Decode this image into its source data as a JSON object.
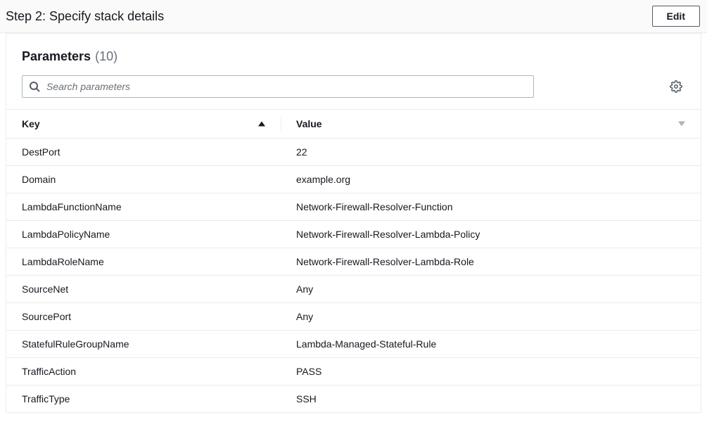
{
  "header": {
    "step_title": "Step 2: Specify stack details",
    "edit_label": "Edit"
  },
  "panel": {
    "title": "Parameters",
    "count": "(10)"
  },
  "search": {
    "placeholder": "Search parameters"
  },
  "table": {
    "columns": [
      {
        "label": "Key",
        "sort": "asc"
      },
      {
        "label": "Value",
        "sort": "none"
      }
    ],
    "rows": [
      {
        "key": "DestPort",
        "value": "22"
      },
      {
        "key": "Domain",
        "value": "example.org"
      },
      {
        "key": "LambdaFunctionName",
        "value": "Network-Firewall-Resolver-Function"
      },
      {
        "key": "LambdaPolicyName",
        "value": "Network-Firewall-Resolver-Lambda-Policy"
      },
      {
        "key": "LambdaRoleName",
        "value": "Network-Firewall-Resolver-Lambda-Role"
      },
      {
        "key": "SourceNet",
        "value": "Any"
      },
      {
        "key": "SourcePort",
        "value": "Any"
      },
      {
        "key": "StatefulRuleGroupName",
        "value": "Lambda-Managed-Stateful-Rule"
      },
      {
        "key": "TrafficAction",
        "value": "PASS"
      },
      {
        "key": "TrafficType",
        "value": "SSH"
      }
    ]
  },
  "colors": {
    "border": "#eaeded",
    "text": "#16191f",
    "muted": "#687078",
    "header_bg": "#fafafa"
  }
}
